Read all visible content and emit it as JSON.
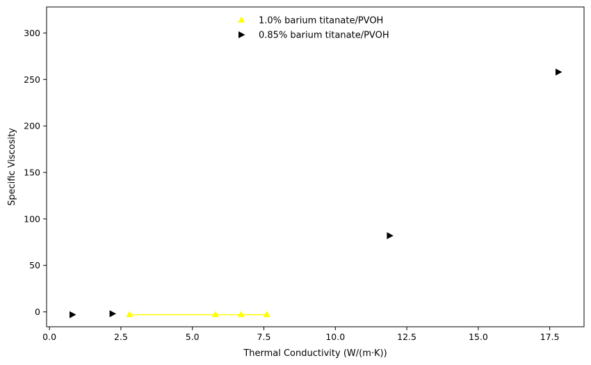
{
  "chart_data": {
    "type": "scatter",
    "title": "",
    "xlabel": "Thermal Conductivity (W/(m·K))",
    "ylabel": "Specific Viscosity",
    "xlim": [
      -0.1,
      18.7
    ],
    "ylim": [
      -16,
      328
    ],
    "xticks": [
      0.0,
      2.5,
      5.0,
      7.5,
      10.0,
      12.5,
      15.0,
      17.5
    ],
    "xtick_labels": [
      "0.0",
      "2.5",
      "5.0",
      "7.5",
      "10.0",
      "12.5",
      "15.0",
      "17.5"
    ],
    "yticks": [
      0,
      50,
      100,
      150,
      200,
      250,
      300
    ],
    "ytick_labels": [
      "0",
      "50",
      "100",
      "150",
      "200",
      "250",
      "300"
    ],
    "grid": false,
    "legend_position": "top-center",
    "series": [
      {
        "name": "1.0% barium titanate/PVOH",
        "marker": "triangle-up",
        "color": "#ffff00",
        "connected": true,
        "points": [
          {
            "x": 2.8,
            "y": -3
          },
          {
            "x": 5.8,
            "y": -3
          },
          {
            "x": 6.7,
            "y": -3
          },
          {
            "x": 7.6,
            "y": -3
          }
        ]
      },
      {
        "name": "0.85% barium titanate/PVOH",
        "marker": "triangle-right",
        "color": "#000000",
        "connected": false,
        "points": [
          {
            "x": 0.8,
            "y": -3
          },
          {
            "x": 2.2,
            "y": -2
          },
          {
            "x": 11.9,
            "y": 82
          },
          {
            "x": 17.8,
            "y": 258
          }
        ]
      }
    ]
  }
}
